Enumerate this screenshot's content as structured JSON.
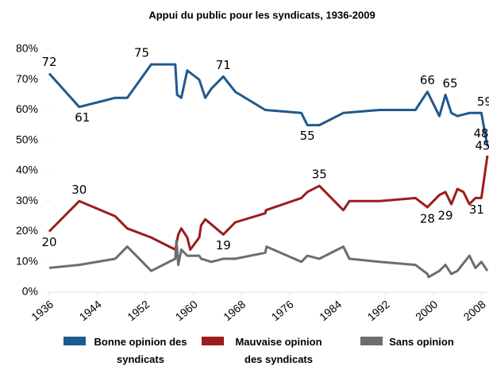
{
  "chart_data": {
    "type": "line",
    "title": "Appui du public pour les syndicats, 1936-2009",
    "xlim": [
      1936,
      2009
    ],
    "xticks": [
      1936,
      1944,
      1952,
      1960,
      1968,
      1976,
      1984,
      1992,
      2000,
      2008
    ],
    "ylim": [
      0,
      80
    ],
    "yticks": [
      {
        "value": 0,
        "label": "0%"
      },
      {
        "value": 10,
        "label": "10%"
      },
      {
        "value": 20,
        "label": "20%"
      },
      {
        "value": 30,
        "label": "30%"
      },
      {
        "value": 40,
        "label": "40%"
      },
      {
        "value": 50,
        "label": "50%"
      },
      {
        "value": 60,
        "label": "60%"
      },
      {
        "value": 70,
        "label": "70%"
      },
      {
        "value": 80,
        "label": "80%"
      }
    ],
    "series": [
      {
        "name": "Bonne opinion des syndicats",
        "color": "#1f5a8c",
        "x": [
          1936,
          1941,
          1947,
          1949,
          1953,
          1957,
          1957.3,
          1958,
          1959,
          1961,
          1962,
          1963,
          1965,
          1967,
          1972,
          1978,
          1979,
          1981,
          1985,
          1991,
          1997,
          1999,
          2001,
          2002,
          2003,
          2004,
          2006,
          2008,
          2009
        ],
        "values": [
          72,
          61,
          64,
          64,
          75,
          75,
          65,
          64,
          73,
          70,
          64,
          67,
          71,
          66,
          60,
          59,
          55,
          55,
          59,
          60,
          60,
          66,
          58,
          65,
          59,
          58,
          59,
          59,
          48
        ]
      },
      {
        "name": "Mauvaise opinion des syndicats",
        "color": "#9b1c1c",
        "x": [
          1936,
          1941,
          1947,
          1949,
          1953,
          1957,
          1957.5,
          1958,
          1959,
          1959.5,
          1961,
          1961.3,
          1962,
          1965,
          1967,
          1972,
          1972.1,
          1978,
          1979,
          1981,
          1985,
          1986,
          1991,
          1997,
          1999,
          2001,
          2002,
          2003,
          2004,
          2005,
          2006,
          2007,
          2008,
          2009
        ],
        "values": [
          20,
          30,
          25,
          21,
          18,
          14,
          19,
          21,
          18,
          14,
          18,
          22,
          24,
          19,
          23,
          26,
          27,
          31,
          33,
          35,
          27,
          30,
          30,
          31,
          28,
          32,
          33,
          29,
          34,
          33,
          29,
          31,
          31,
          45
        ]
      },
      {
        "name": "Sans opinion",
        "color": "#6d6d6d",
        "x": [
          1936,
          1941,
          1947,
          1949,
          1953,
          1957,
          1957.2,
          1957.5,
          1958,
          1959,
          1961,
          1961.3,
          1963,
          1965,
          1967,
          1972,
          1972.2,
          1978,
          1979,
          1981,
          1985,
          1986,
          1991,
          1997,
          1999,
          1999.2,
          2001,
          2002,
          2003,
          2004,
          2006,
          2007,
          2008,
          2009
        ],
        "values": [
          8,
          9,
          11,
          15,
          7,
          11,
          17,
          9,
          14,
          12,
          12,
          11,
          10,
          11,
          11,
          13,
          15,
          10,
          12,
          11,
          15,
          11,
          10,
          9,
          6,
          5,
          7,
          9,
          6,
          7,
          12,
          8,
          10,
          7
        ]
      }
    ],
    "annotations": [
      {
        "x": 1936,
        "y": 72
      },
      {
        "x": 1941,
        "y": 61
      },
      {
        "x": 1953,
        "y": 75
      },
      {
        "x": 1965,
        "y": 71
      },
      {
        "x": 1979,
        "y": 55
      },
      {
        "x": 1999,
        "y": 66
      },
      {
        "x": 2002,
        "y": 65
      },
      {
        "x": 2008,
        "y": 59
      },
      {
        "x": 2009,
        "y": 48
      },
      {
        "x": 1941,
        "y": 30
      },
      {
        "x": 1936,
        "y": 20
      },
      {
        "x": 1981,
        "y": 35
      },
      {
        "x": 1965,
        "y": 19
      },
      {
        "x": 1999,
        "y": 28
      },
      {
        "x": 2002,
        "y": 29
      },
      {
        "x": 2009,
        "y": 45
      },
      {
        "x": 2008,
        "y": 31
      }
    ]
  }
}
